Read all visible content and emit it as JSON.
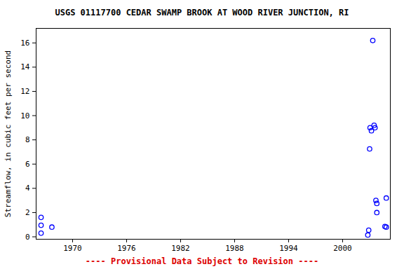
{
  "chart_data": {
    "type": "scatter",
    "title": "USGS 01117700 CEDAR SWAMP BROOK AT WOOD RIVER JUNCTION, RI",
    "y_label": "Streamflow, in cubic feet per second",
    "caption": "---- Provisional Data Subject to Revision ----",
    "x": [
      1966.5,
      1966.5,
      1966.5,
      1967.7,
      2002.8,
      2002.9,
      2003.0,
      2003.05,
      2003.2,
      2003.5,
      2003.6,
      2003.35,
      2003.7,
      2003.8,
      2003.8,
      2004.7,
      2004.85,
      2004.85
    ],
    "values": [
      1.6,
      0.95,
      0.3,
      0.8,
      0.15,
      0.55,
      7.25,
      9.0,
      8.75,
      9.2,
      9.0,
      16.2,
      3.0,
      2.75,
      2.0,
      0.85,
      0.8,
      3.2
    ],
    "color": "#0000ff",
    "marker": "circle",
    "xlim": [
      1965.95,
      2005.3
    ],
    "ylim": [
      -0.2,
      17.2
    ],
    "xticks": [
      1970,
      1976,
      1982,
      1988,
      1994,
      2000
    ],
    "yticks": [
      0,
      2,
      4,
      6,
      8,
      10,
      12,
      14,
      16
    ],
    "grid": false
  }
}
